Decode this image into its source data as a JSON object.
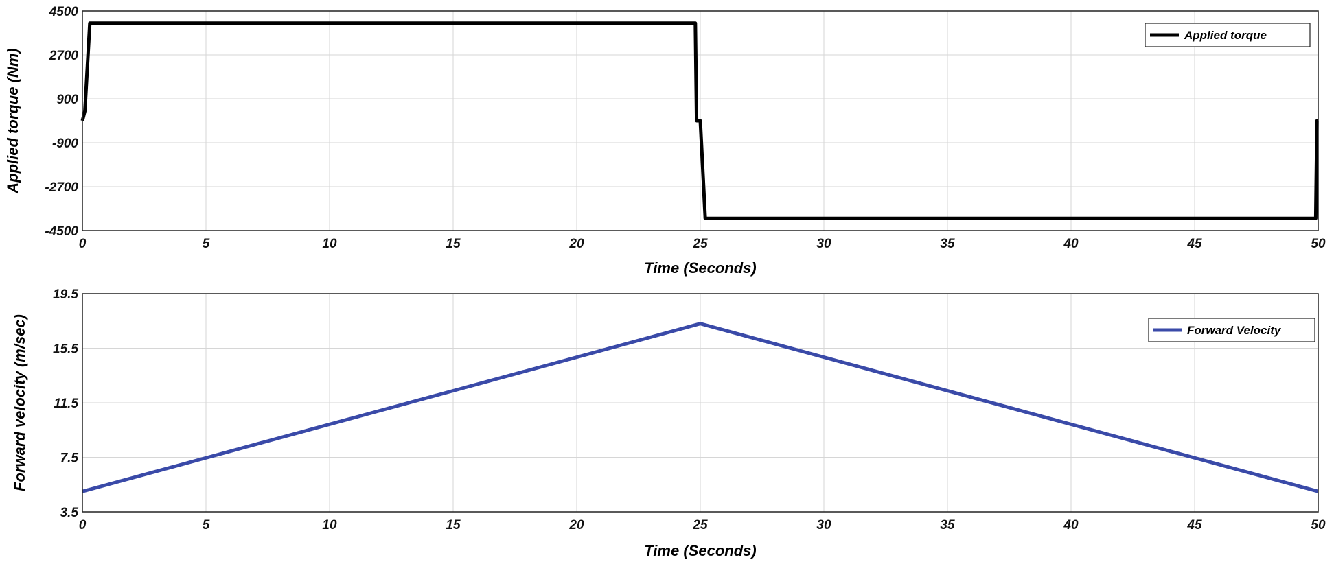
{
  "chart_data": [
    {
      "type": "line",
      "xlabel": "Time (Seconds)",
      "ylabel": "Applied torque (Nm)",
      "xlim": [
        0,
        50
      ],
      "ylim": [
        -4500,
        4500
      ],
      "xticks": [
        "0",
        "5",
        "10",
        "15",
        "20",
        "25",
        "30",
        "35",
        "40",
        "45",
        "50"
      ],
      "yticks": [
        "4500",
        "2700",
        "900",
        "-900",
        "-2700",
        "-4500"
      ],
      "grid": true,
      "legend_position": "top-right",
      "series": [
        {
          "name": "Applied torque",
          "color": "#000000",
          "x": [
            0,
            0.1,
            0.3,
            24.8,
            24.85,
            25.0,
            25.2,
            49.9,
            49.95,
            50.0
          ],
          "y": [
            0,
            400,
            4000,
            4000,
            0,
            0,
            -4000,
            -4000,
            0,
            0
          ]
        }
      ]
    },
    {
      "type": "line",
      "xlabel": "Time (Seconds)",
      "ylabel": "Forward velocity (m/sec)",
      "xlim": [
        0,
        50
      ],
      "ylim": [
        3.5,
        19.5
      ],
      "xticks": [
        "0",
        "5",
        "10",
        "15",
        "20",
        "25",
        "30",
        "35",
        "40",
        "45",
        "50"
      ],
      "yticks": [
        "19.5",
        "15.5",
        "11.5",
        "7.5",
        "3.5"
      ],
      "grid": true,
      "legend_position": "top-right",
      "series": [
        {
          "name": "Forward Velocity",
          "color": "#3a4aa8",
          "x": [
            0,
            25,
            50
          ],
          "y": [
            5.0,
            17.3,
            5.0
          ]
        }
      ]
    }
  ]
}
